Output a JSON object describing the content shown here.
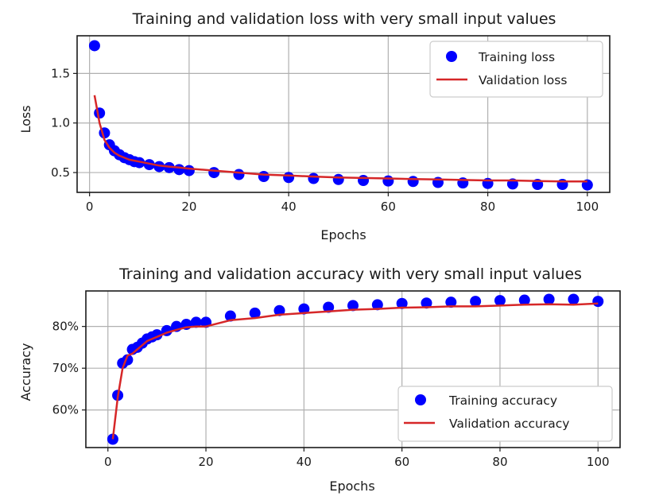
{
  "chart_data": [
    {
      "type": "scatter+line",
      "title": "Training and validation loss with very small input values",
      "xlabel": "Epochs",
      "ylabel": "Loss",
      "xlim": [
        -2.5,
        104.5
      ],
      "ylim": [
        0.3,
        1.88
      ],
      "xticks": [
        0,
        20,
        40,
        60,
        80,
        100
      ],
      "yticks": [
        0.5,
        1.0,
        1.5
      ],
      "ytick_labels": [
        "0.5",
        "1.0",
        "1.5"
      ],
      "grid": true,
      "legend_position": "top-right",
      "series": [
        {
          "name": "Training loss",
          "style": "points",
          "color": "#0000ff",
          "x": [
            1,
            2,
            3,
            4,
            5,
            6,
            7,
            8,
            9,
            10,
            12,
            14,
            16,
            18,
            20,
            25,
            30,
            35,
            40,
            45,
            50,
            55,
            60,
            65,
            70,
            75,
            80,
            85,
            90,
            95,
            100
          ],
          "y": [
            1.78,
            1.1,
            0.9,
            0.78,
            0.72,
            0.68,
            0.65,
            0.63,
            0.61,
            0.6,
            0.58,
            0.56,
            0.55,
            0.53,
            0.52,
            0.5,
            0.48,
            0.46,
            0.45,
            0.44,
            0.43,
            0.42,
            0.415,
            0.41,
            0.4,
            0.395,
            0.39,
            0.385,
            0.38,
            0.38,
            0.375
          ]
        },
        {
          "name": "Validation loss",
          "style": "line",
          "color": "#d62728",
          "x": [
            1,
            2,
            3,
            4,
            5,
            6,
            7,
            8,
            9,
            10,
            12,
            14,
            16,
            18,
            20,
            25,
            30,
            35,
            40,
            45,
            50,
            55,
            60,
            65,
            70,
            75,
            80,
            85,
            90,
            95,
            100
          ],
          "y": [
            1.28,
            1.0,
            0.83,
            0.75,
            0.7,
            0.67,
            0.65,
            0.63,
            0.62,
            0.61,
            0.59,
            0.57,
            0.56,
            0.55,
            0.54,
            0.52,
            0.5,
            0.48,
            0.47,
            0.46,
            0.45,
            0.445,
            0.44,
            0.435,
            0.43,
            0.425,
            0.42,
            0.42,
            0.415,
            0.41,
            0.41
          ]
        }
      ]
    },
    {
      "type": "scatter+line",
      "title": "Training and validation accuracy with very small input values",
      "xlabel": "Epochs",
      "ylabel": "Accuracy",
      "xlim": [
        -4.5,
        104.5
      ],
      "ylim": [
        0.51,
        0.885
      ],
      "xticks": [
        0,
        20,
        40,
        60,
        80,
        100
      ],
      "yticks": [
        0.6,
        0.7,
        0.8
      ],
      "ytick_labels": [
        "60%",
        "70%",
        "80%"
      ],
      "grid": true,
      "legend_position": "lower-right",
      "series": [
        {
          "name": "Training accuracy",
          "style": "points",
          "color": "#0000ff",
          "x": [
            1,
            2,
            3,
            4,
            5,
            6,
            7,
            8,
            9,
            10,
            12,
            14,
            16,
            18,
            20,
            25,
            30,
            35,
            40,
            45,
            50,
            55,
            60,
            65,
            70,
            75,
            80,
            85,
            90,
            95,
            100
          ],
          "y": [
            0.53,
            0.635,
            0.712,
            0.72,
            0.745,
            0.75,
            0.76,
            0.77,
            0.775,
            0.78,
            0.79,
            0.8,
            0.805,
            0.81,
            0.81,
            0.825,
            0.832,
            0.838,
            0.842,
            0.846,
            0.85,
            0.852,
            0.855,
            0.856,
            0.858,
            0.86,
            0.862,
            0.863,
            0.865,
            0.865,
            0.86
          ]
        },
        {
          "name": "Validation accuracy",
          "style": "line",
          "color": "#d62728",
          "x": [
            1,
            2,
            3,
            4,
            5,
            6,
            7,
            8,
            9,
            10,
            12,
            14,
            16,
            18,
            20,
            25,
            30,
            35,
            40,
            45,
            50,
            55,
            60,
            65,
            70,
            75,
            80,
            85,
            90,
            95,
            100
          ],
          "y": [
            0.53,
            0.63,
            0.7,
            0.73,
            0.735,
            0.745,
            0.755,
            0.765,
            0.77,
            0.775,
            0.785,
            0.792,
            0.798,
            0.8,
            0.8,
            0.815,
            0.82,
            0.828,
            0.832,
            0.836,
            0.84,
            0.842,
            0.845,
            0.846,
            0.848,
            0.848,
            0.85,
            0.852,
            0.853,
            0.852,
            0.855
          ]
        }
      ]
    }
  ]
}
